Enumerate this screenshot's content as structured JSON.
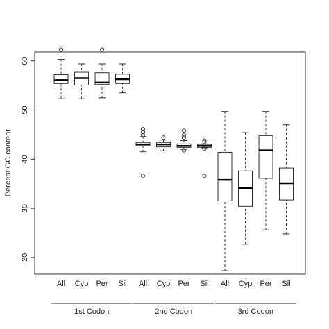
{
  "chart_data": {
    "type": "box",
    "y_label": "Percent GC content",
    "ylim": [
      16.6,
      61.8
    ],
    "yticks": [
      20,
      30,
      40,
      50,
      60
    ],
    "groups": [
      {
        "name": "1st Codon",
        "categories": [
          "All",
          "Cyp",
          "Per",
          "Sil"
        ],
        "boxes": [
          {
            "min": 52.3,
            "q1": 55.4,
            "median": 56.1,
            "q3": 57.2,
            "max": 60.3,
            "outliers": [
              62.3
            ]
          },
          {
            "min": 52.3,
            "q1": 55.1,
            "median": 56.5,
            "q3": 57.7,
            "max": 59.4,
            "outliers": []
          },
          {
            "min": 52.5,
            "q1": 55.2,
            "median": 55.6,
            "q3": 57.6,
            "max": 59.4,
            "outliers": [
              62.3
            ]
          },
          {
            "min": 53.5,
            "q1": 55.4,
            "median": 56.3,
            "q3": 57.3,
            "max": 59.4,
            "outliers": []
          }
        ]
      },
      {
        "name": "2nd Codon",
        "categories": [
          "All",
          "Cyp",
          "Per",
          "Sil"
        ],
        "boxes": [
          {
            "min": 41.5,
            "q1": 42.7,
            "median": 43.0,
            "q3": 43.4,
            "max": 44.6,
            "outliers": [
              46.1,
              45.5,
              44.9,
              36.6
            ]
          },
          {
            "min": 41.7,
            "q1": 42.5,
            "median": 43.0,
            "q3": 43.4,
            "max": 43.9,
            "outliers": [
              44.4
            ]
          },
          {
            "min": 42.0,
            "q1": 42.4,
            "median": 42.7,
            "q3": 43.1,
            "max": 43.8,
            "outliers": [
              45.8,
              44.9,
              44.4,
              41.8
            ]
          },
          {
            "min": 42.3,
            "q1": 42.4,
            "median": 42.7,
            "q3": 43.0,
            "max": 43.1,
            "outliers": [
              43.8,
              43.5,
              42.1,
              36.6
            ]
          }
        ]
      },
      {
        "name": "3rd Codon",
        "categories": [
          "All",
          "Cyp",
          "Per",
          "Sil"
        ],
        "boxes": [
          {
            "min": 17.3,
            "q1": 31.5,
            "median": 35.8,
            "q3": 41.4,
            "max": 49.7,
            "outliers": []
          },
          {
            "min": 22.7,
            "q1": 30.4,
            "median": 34.1,
            "q3": 37.6,
            "max": 45.4,
            "outliers": []
          },
          {
            "min": 25.6,
            "q1": 36.1,
            "median": 41.8,
            "q3": 44.8,
            "max": 49.7,
            "outliers": []
          },
          {
            "min": 24.8,
            "q1": 31.7,
            "median": 35.1,
            "q3": 38.2,
            "max": 47.0,
            "outliers": []
          }
        ]
      }
    ]
  }
}
